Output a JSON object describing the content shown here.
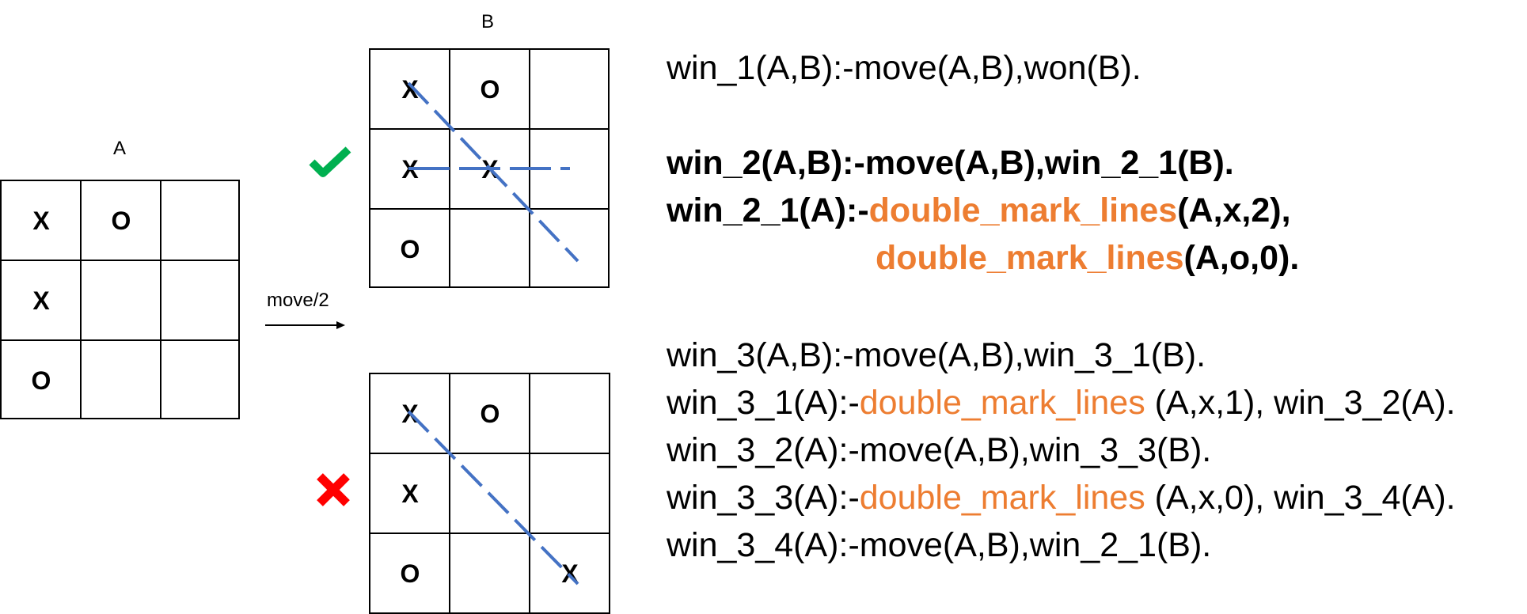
{
  "boards": {
    "a": {
      "label": "A",
      "cells": [
        "X",
        "O",
        "",
        "X",
        "",
        "",
        "O",
        "",
        ""
      ]
    },
    "b": {
      "label": "B",
      "cells": [
        "X",
        "O",
        "",
        "X",
        "X",
        "",
        "O",
        "",
        ""
      ]
    },
    "c": {
      "label": "",
      "cells": [
        "X",
        "O",
        "",
        "X",
        "",
        "",
        "O",
        "",
        "X"
      ]
    }
  },
  "move_label": "move/2",
  "status": {
    "b": "check-icon",
    "c": "cross-icon"
  },
  "colors": {
    "highlight": "#ED7D31",
    "line": "#4472C4",
    "check": "#00B050",
    "cross": "#FF0000"
  },
  "rules": {
    "win1": {
      "l0": {
        "a": "win_1(A,B):-move(A,B),won(B)."
      }
    },
    "win2": {
      "l0": {
        "a": "win_2(A,B):-move(A,B),win_2_1(B)."
      },
      "l1": {
        "a": "win_2_1(A):-",
        "b": "double_mark_lines",
        "c": "(A,x,2),"
      },
      "l2": {
        "b": "double_mark_lines",
        "c": "(A,o,0)."
      }
    },
    "win3": {
      "l0": {
        "a": "win_3(A,B):-move(A,B),win_3_1(B)."
      },
      "l1": {
        "a": "win_3_1(A):-",
        "b": "double_mark_lines",
        "c": " (A,x,1), win_3_2(A)."
      },
      "l2": {
        "a": "win_3_2(A):-move(A,B),win_3_3(B)."
      },
      "l3": {
        "a": "win_3_3(A):-",
        "b": "double_mark_lines",
        "c": " (A,x,0), win_3_4(A)."
      },
      "l4": {
        "a": "win_3_4(A):-move(A,B),win_2_1(B)."
      }
    }
  }
}
